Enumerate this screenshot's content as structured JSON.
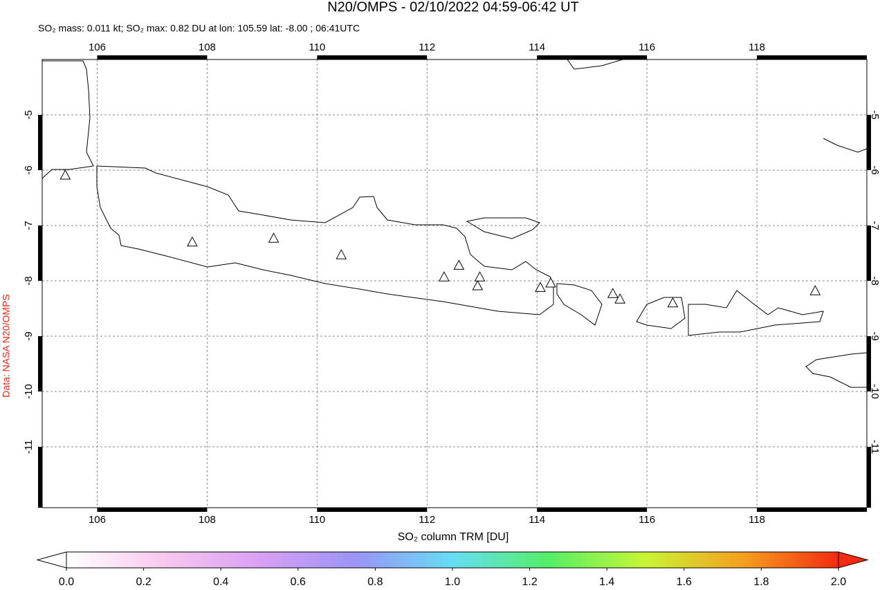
{
  "chart_data": {
    "type": "map",
    "title": "N20/OMPS - 02/10/2022 04:59-06:42 UT",
    "subtitle": "SO₂ mass: 0.011 kt; SO₂ max: 0.82 DU at lon: 105.59 lat: -8.00 ; 06:41UTC",
    "credit": "Data: NASA N20/OMPS",
    "xlim": [
      105,
      120
    ],
    "ylim": [
      -12.1,
      -4
    ],
    "xticks": [
      106,
      108,
      110,
      112,
      114,
      116,
      118
    ],
    "yticks": [
      -5,
      -6,
      -7,
      -8,
      -9,
      -10,
      -11
    ],
    "grid": true,
    "volcanoes": {
      "x": [
        105.42,
        107.73,
        109.21,
        110.44,
        112.31,
        112.58,
        112.96,
        112.92,
        114.06,
        114.25,
        115.38,
        115.51,
        116.47,
        119.06
      ],
      "y": [
        -6.1,
        -7.31,
        -7.24,
        -7.54,
        -7.94,
        -7.73,
        -7.94,
        -8.1,
        -8.13,
        -8.05,
        -8.24,
        -8.34,
        -8.41,
        -8.19
      ]
    },
    "colorbar": {
      "label": "SO₂ column TRM [DU]",
      "lim": [
        0,
        2
      ],
      "ticks": [
        {
          "value": 0,
          "label": "0.0"
        },
        0.2,
        0.4,
        0.6,
        0.8,
        {
          "value": 1,
          "label": "1.0"
        },
        1.2,
        1.4,
        1.6,
        1.8,
        {
          "value": 2,
          "label": "2.0"
        }
      ],
      "colors": [
        "#ffffff",
        "#f8c8ee",
        "#d9a0f5",
        "#9a94f5",
        "#66ddf5",
        "#55ee66",
        "#c8f535",
        "#f5a020",
        "#f52a10"
      ]
    }
  }
}
